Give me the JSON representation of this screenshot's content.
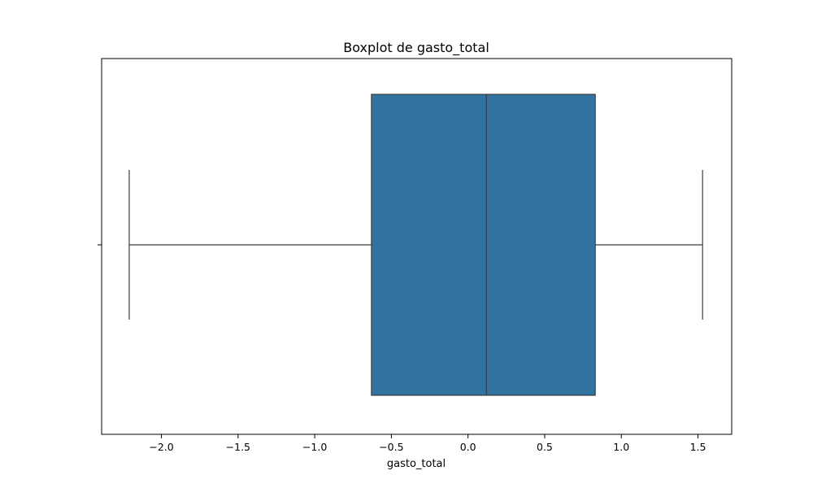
{
  "chart_data": {
    "type": "boxplot",
    "title": "Boxplot de gasto_total",
    "xlabel": "gasto_total",
    "ylabel": "",
    "xlim": [
      -2.39,
      1.72
    ],
    "x_ticks": [
      -2.0,
      -1.5,
      -1.0,
      -0.5,
      0.0,
      0.5,
      1.0,
      1.5
    ],
    "x_tick_labels": [
      "−2.0",
      "−1.5",
      "−1.0",
      "−0.5",
      "0.0",
      "0.5",
      "1.0",
      "1.5"
    ],
    "orientation": "horizontal",
    "grid": false,
    "boxes": [
      {
        "whisker_low": -2.21,
        "q1": -0.63,
        "median": 0.12,
        "q3": 0.83,
        "whisker_high": 1.53,
        "fill": "#3274a1",
        "edge": "#3d3d3d"
      }
    ]
  }
}
